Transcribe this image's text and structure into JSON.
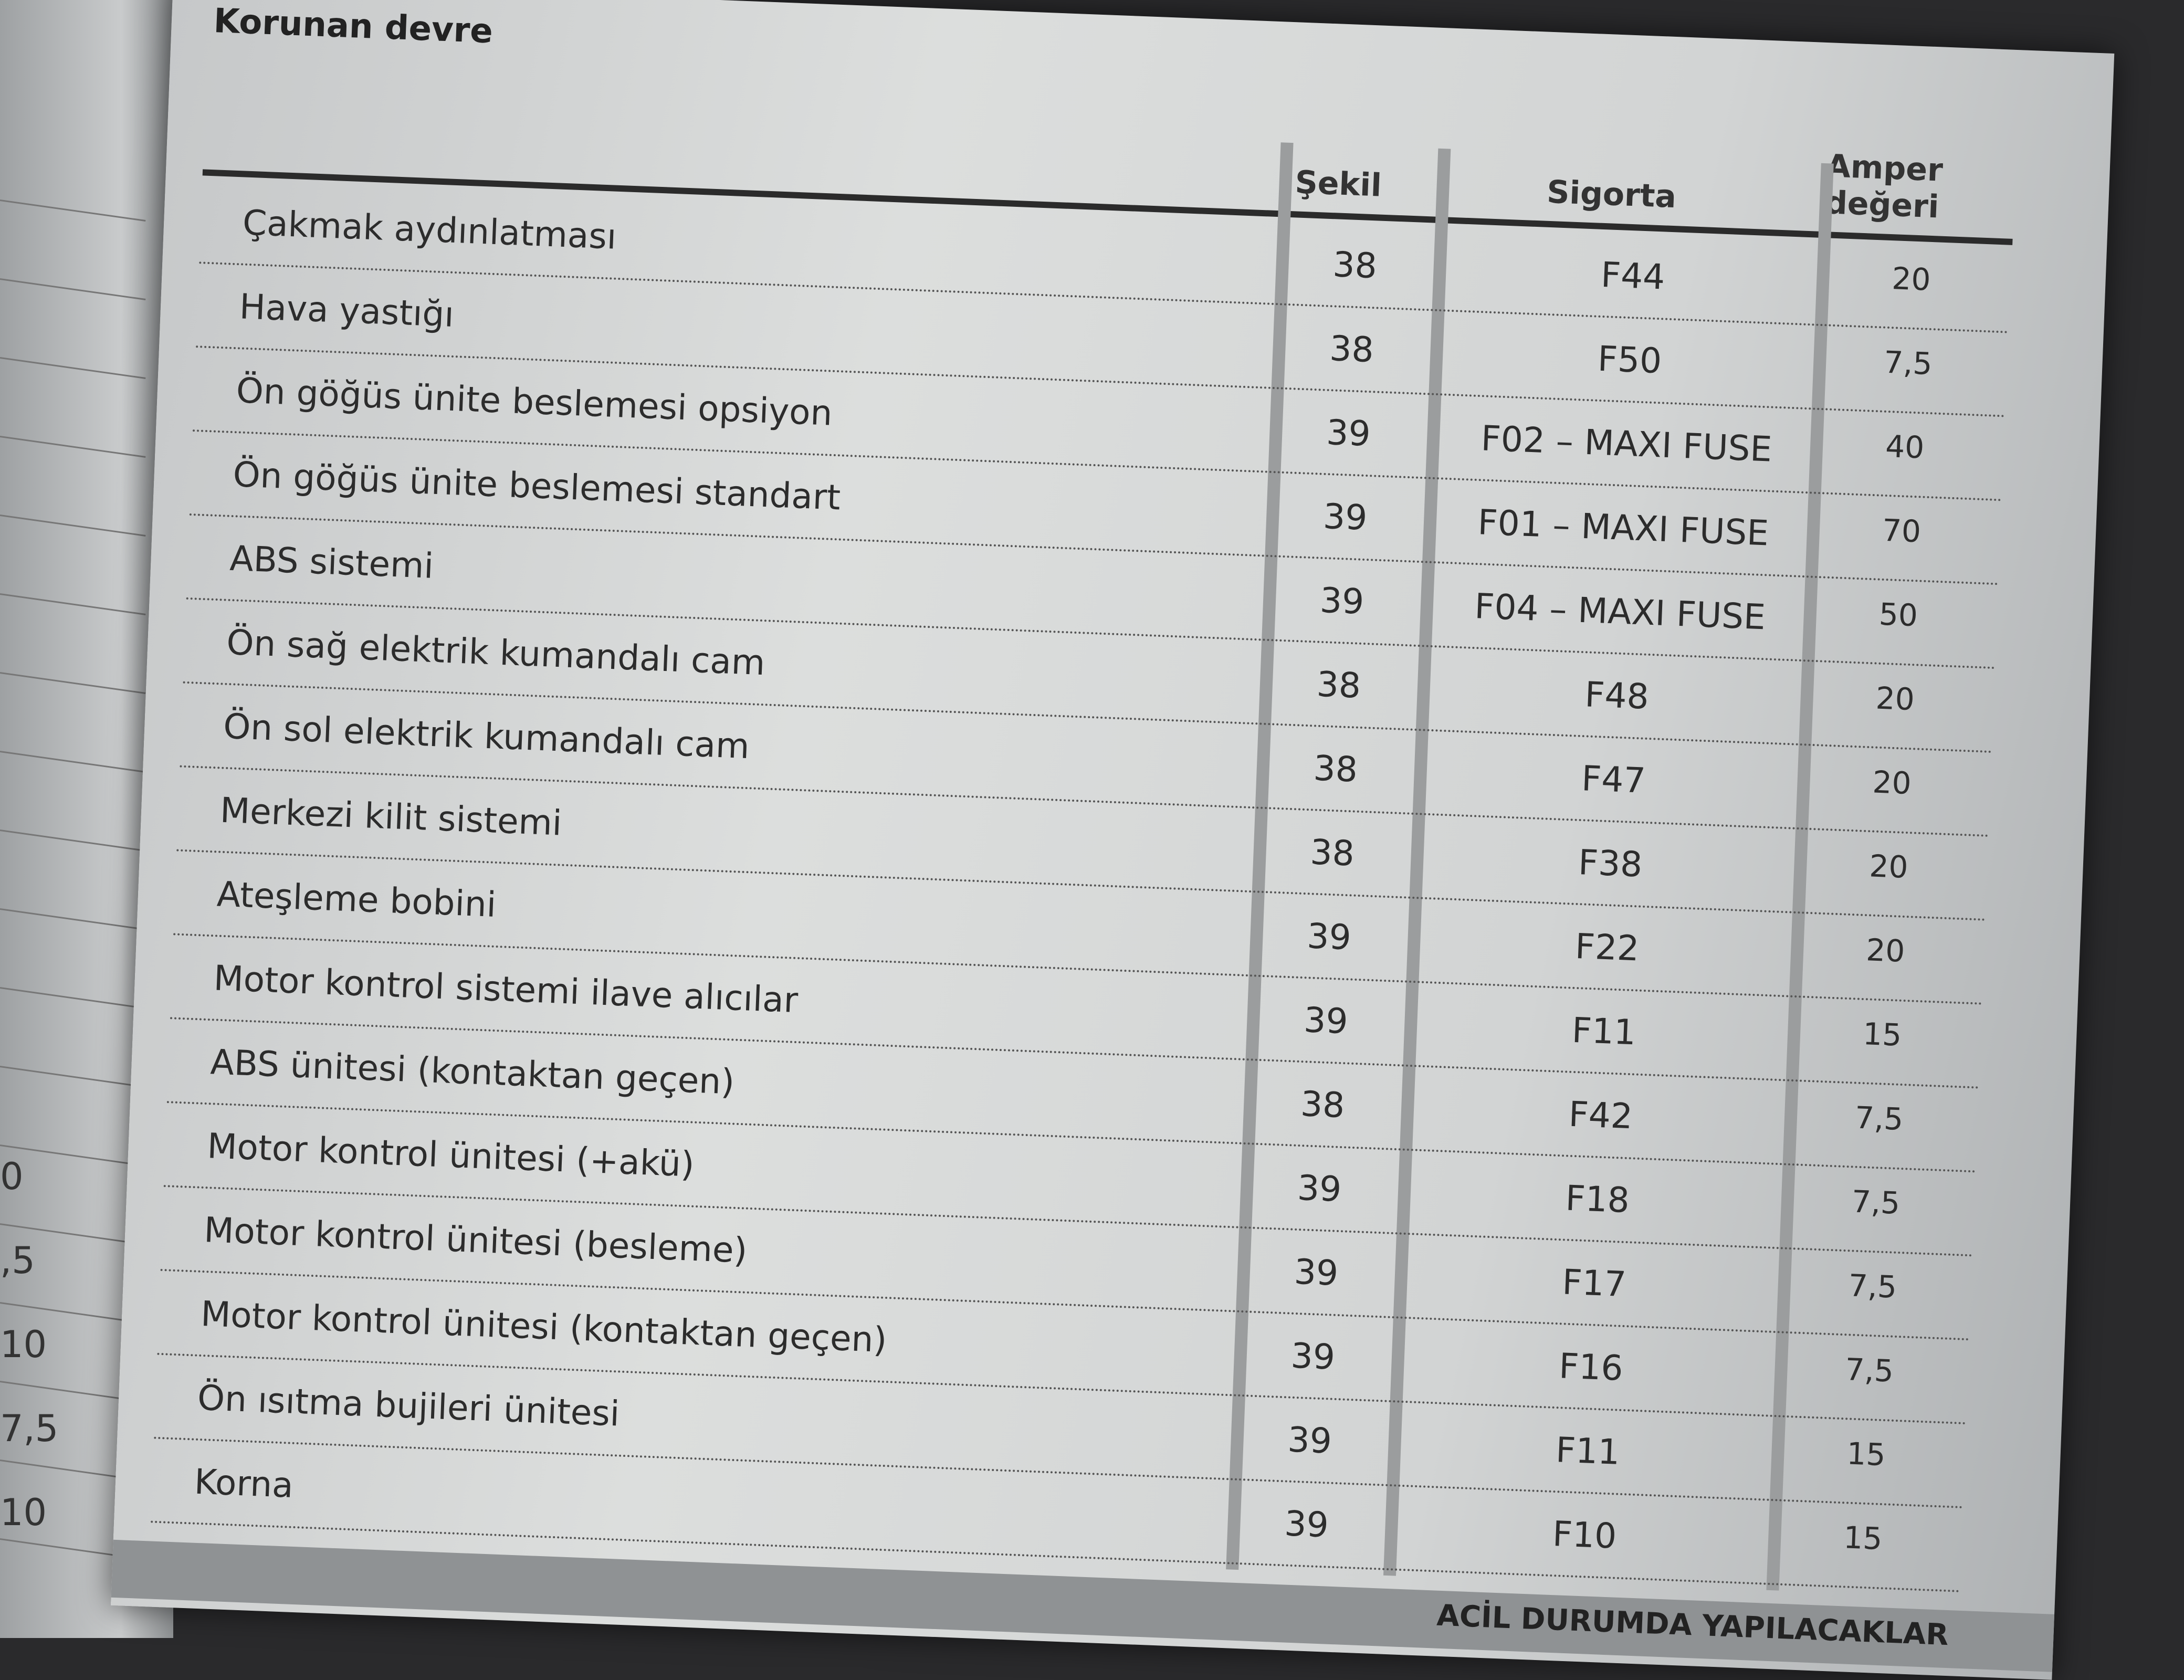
{
  "left_page": {
    "fragments": [
      "0",
      ",5",
      "10",
      "7,5",
      "10"
    ]
  },
  "table": {
    "title": "Korunan devre",
    "headers": [
      "Şekil",
      "Sigorta",
      "Amper değeri"
    ],
    "rows": [
      [
        "Çakmak aydınlatması",
        "38",
        "F44",
        "20"
      ],
      [
        "Hava yastığı",
        "38",
        "F50",
        "7,5"
      ],
      [
        "Ön göğüs ünite beslemesi opsiyon",
        "39",
        "F02 – MAXI FUSE",
        "40"
      ],
      [
        "Ön göğüs ünite beslemesi standart",
        "39",
        "F01 – MAXI FUSE",
        "70"
      ],
      [
        "ABS sistemi",
        "39",
        "F04 – MAXI FUSE",
        "50"
      ],
      [
        "Ön sağ elektrik kumandalı cam",
        "38",
        "F48",
        "20"
      ],
      [
        "Ön sol elektrik kumandalı cam",
        "38",
        "F47",
        "20"
      ],
      [
        "Merkezi kilit sistemi",
        "38",
        "F38",
        "20"
      ],
      [
        "Ateşleme bobini",
        "39",
        "F22",
        "20"
      ],
      [
        "Motor kontrol sistemi ilave alıcılar",
        "39",
        "F11",
        "15"
      ],
      [
        "ABS ünitesi (kontaktan geçen)",
        "38",
        "F42",
        "7,5"
      ],
      [
        "Motor kontrol ünitesi (+akü)",
        "39",
        "F18",
        "7,5"
      ],
      [
        "Motor kontrol ünitesi (besleme)",
        "39",
        "F17",
        "7,5"
      ],
      [
        "Motor kontrol ünitesi (kontaktan geçen)",
        "39",
        "F16",
        "7,5"
      ],
      [
        "Ön ısıtma bujileri ünitesi",
        "39",
        "F11",
        "15"
      ],
      [
        "Korna",
        "39",
        "F10",
        "15"
      ]
    ]
  },
  "footer": {
    "section": "ACİL DURUMDA YAPILACAKLAR"
  }
}
